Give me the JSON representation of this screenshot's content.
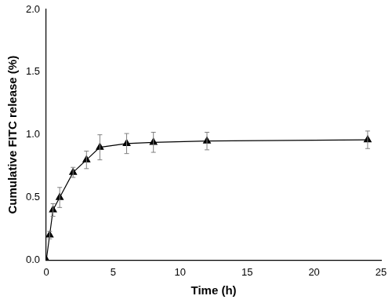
{
  "chart_data": {
    "type": "line",
    "x_label": "Time (h)",
    "y_label": "Cumulative FITC release (%)",
    "x": [
      0,
      0.25,
      0.5,
      1,
      2,
      3,
      4,
      6,
      8,
      12,
      24
    ],
    "series": [
      {
        "name": "FITC",
        "color": "#000000",
        "marker": "triangle",
        "values": [
          0,
          0.2,
          0.4,
          0.5,
          0.7,
          0.8,
          0.9,
          0.93,
          0.94,
          0.95,
          0.96
        ],
        "errors": [
          0,
          0.03,
          0.05,
          0.08,
          0.04,
          0.07,
          0.1,
          0.08,
          0.08,
          0.07,
          0.07
        ]
      }
    ],
    "xlim": [
      0,
      25
    ],
    "xticks": [
      0,
      5,
      10,
      15,
      20,
      25
    ],
    "ylim": [
      0,
      2.0
    ],
    "yticks": [
      {
        "value": 0,
        "label": "0.0"
      },
      {
        "value": 0.5,
        "label": "0.5"
      },
      {
        "value": 1.0,
        "label": "1.0"
      },
      {
        "value": 1.5,
        "label": "1.5"
      },
      {
        "value": 2.0,
        "label": "2.0"
      }
    ],
    "grid": false
  }
}
